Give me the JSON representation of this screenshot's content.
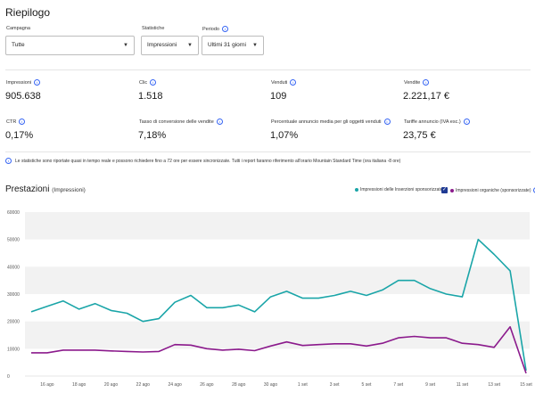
{
  "page": {
    "title": "Riepilogo"
  },
  "filters": {
    "campaign": {
      "label": "Campagna",
      "value": "Tutte"
    },
    "stats": {
      "label": "Statistiche",
      "value": "Impressioni"
    },
    "period": {
      "label": "Periodo",
      "value": "Ultimi 31 giorni"
    }
  },
  "metrics": [
    {
      "label": "Impressioni",
      "value": "905.638"
    },
    {
      "label": "Clic",
      "value": "1.518"
    },
    {
      "label": "Venduti",
      "value": "109"
    },
    {
      "label": "Vendite",
      "value": "2.221,17 €"
    },
    {
      "label": "CTR",
      "value": "0,17%"
    },
    {
      "label": "Tasso di conversione delle vendite",
      "value": "7,18%"
    },
    {
      "label": "Percentuale annuncio media per gli oggetti venduti",
      "value": "1,07%"
    },
    {
      "label": "Tariffe annuncio (IVA esc.)",
      "value": "23,75 €"
    }
  ],
  "note": "Le statistiche sono riportate quasi in tempo reale e possono richiedere fino a 72 ore per essere sincronizzate. Tutti i report faranno riferimento all'orario Mountain Standard Time (ora italiana -8 ore)",
  "chart_section": {
    "title": "Prestazioni",
    "subtitle": "(Impressioni)"
  },
  "colors": {
    "series_promoted": "#1aa5a8",
    "series_organic": "#8b1a8c",
    "accent": "#3665f3",
    "band": "#f2f2f2"
  },
  "chart_data": {
    "type": "line",
    "ylim": [
      0,
      60000
    ],
    "y_ticks": [
      "0",
      "10000",
      "20000",
      "30000",
      "40000",
      "50000",
      "60000"
    ],
    "x_tick_labels": [
      "16 ago",
      "18 ago",
      "20 ago",
      "22 ago",
      "24 ago",
      "26 ago",
      "28 ago",
      "30 ago",
      "1 set",
      "3 set",
      "5 set",
      "7 set",
      "9 set",
      "11 set",
      "13 set",
      "15 set"
    ],
    "x": [
      "15 ago",
      "16 ago",
      "17 ago",
      "18 ago",
      "19 ago",
      "20 ago",
      "21 ago",
      "22 ago",
      "23 ago",
      "24 ago",
      "25 ago",
      "26 ago",
      "27 ago",
      "28 ago",
      "29 ago",
      "30 ago",
      "31 ago",
      "1 set",
      "2 set",
      "3 set",
      "4 set",
      "5 set",
      "6 set",
      "7 set",
      "8 set",
      "9 set",
      "10 set",
      "11 set",
      "12 set",
      "13 set",
      "14 set",
      "15 set"
    ],
    "series": [
      {
        "name": "Impressioni delle Inserzioni sponsorizzate",
        "values": [
          23500,
          25500,
          27500,
          24500,
          26500,
          24000,
          23000,
          20000,
          21000,
          27000,
          29500,
          25000,
          25000,
          26000,
          23500,
          29000,
          31000,
          28500,
          28500,
          29500,
          31000,
          29500,
          31500,
          35000,
          35000,
          32000,
          30000,
          29000,
          50000,
          44500,
          38500,
          2000
        ]
      },
      {
        "name": "Impressioni organiche (sponsorizzate)",
        "values": [
          8500,
          8500,
          9500,
          9500,
          9500,
          9200,
          9000,
          8800,
          9000,
          11500,
          11300,
          10000,
          9500,
          9800,
          9300,
          11000,
          12500,
          11200,
          11500,
          11800,
          11800,
          11000,
          12000,
          14000,
          14500,
          14000,
          14000,
          12000,
          11500,
          10500,
          18000,
          1000
        ]
      }
    ]
  }
}
